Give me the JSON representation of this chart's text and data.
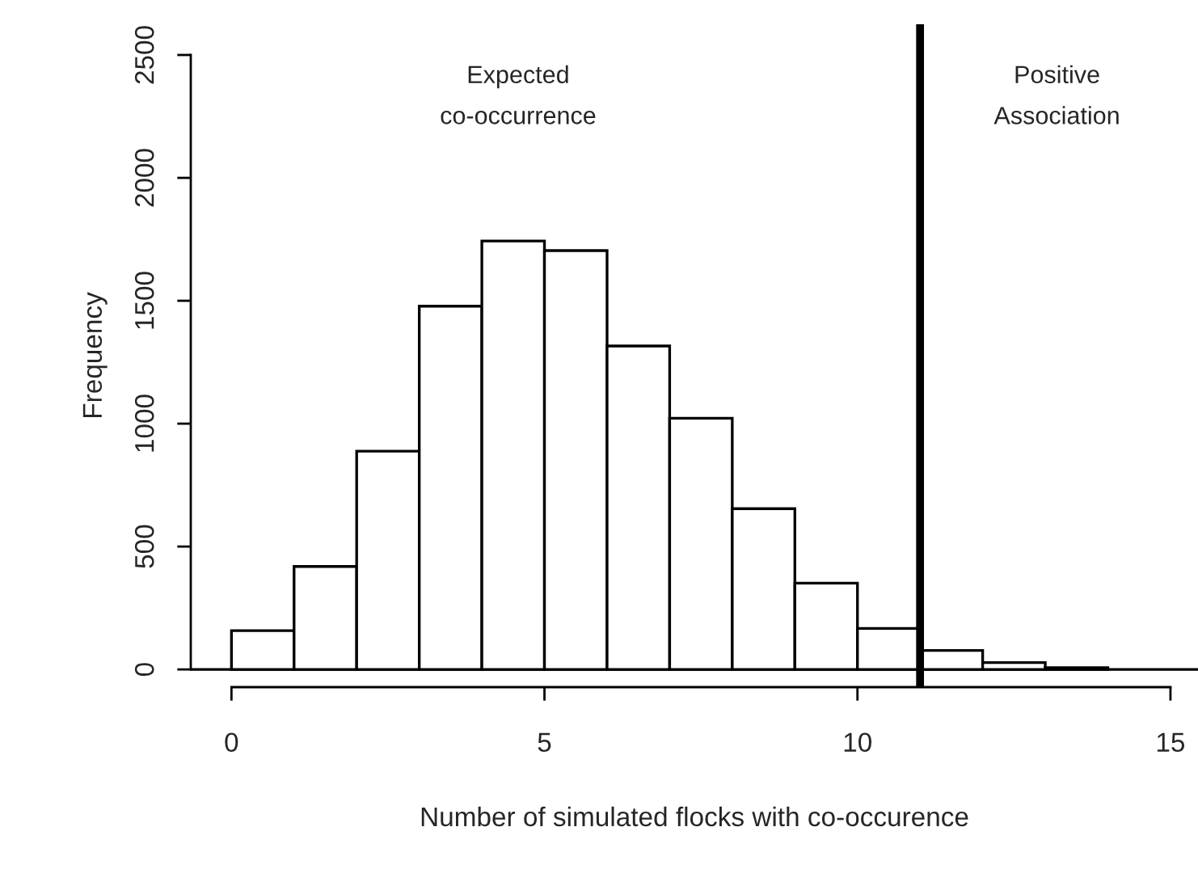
{
  "chart_data": {
    "type": "histogram",
    "xlabel": "Number of simulated flocks with co-occurence",
    "ylabel": "Frequency",
    "bins": [
      0,
      1,
      2,
      3,
      4,
      5,
      6,
      7,
      8,
      9,
      10,
      11,
      12,
      13,
      14
    ],
    "values": [
      158,
      419,
      888,
      1478,
      1743,
      1704,
      1316,
      1022,
      654,
      351,
      167,
      77,
      28,
      7
    ],
    "color": "#ffffff",
    "xlim": [
      -0.65,
      15.44
    ],
    "ylim": [
      -72,
      2625
    ],
    "xticks": [
      0,
      5,
      10,
      15
    ],
    "yticks": [
      0,
      500,
      1000,
      1500,
      2000,
      2500
    ],
    "ref_lines": [
      {
        "axis": "x",
        "value": 11,
        "color": "#000000"
      },
      {
        "axis": "y",
        "value": 0,
        "color": "#000000"
      }
    ],
    "annotations": [
      "Expected\nco-occurrence",
      "Positive\nAssociation"
    ],
    "grid": false
  }
}
